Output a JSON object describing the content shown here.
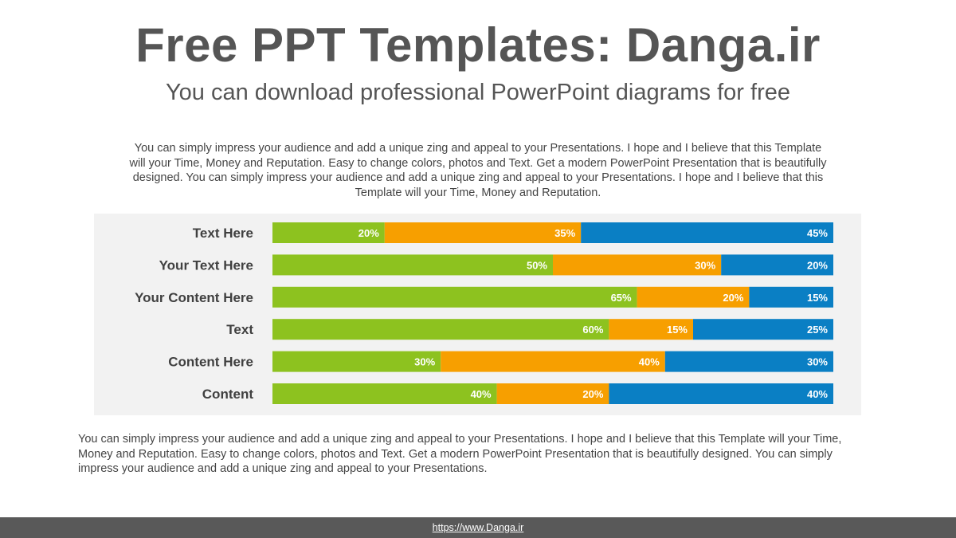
{
  "header": {
    "title": "Free PPT Templates: Danga.ir",
    "subtitle": "You can download professional PowerPoint diagrams for free"
  },
  "intro_text": "You can simply impress your audience and add a unique zing and appeal to your Presentations. I hope and I believe that this Template will your Time, Money and Reputation. Easy to change colors, photos and Text. Get a modern PowerPoint Presentation that is beautifully designed. You can simply impress your audience and add a unique zing and appeal to your Presentations. I hope and I believe that this Template will your Time, Money and Reputation.",
  "chart_data": {
    "type": "bar",
    "orientation": "horizontal",
    "stacked": "100%",
    "categories": [
      "Text Here",
      "Your Text Here",
      "Your Content  Here",
      "Text",
      "Content Here",
      "Content"
    ],
    "series": [
      {
        "values": [
          20,
          50,
          65,
          60,
          30,
          40
        ],
        "color": "#8dc21f"
      },
      {
        "values": [
          35,
          30,
          20,
          15,
          40,
          20
        ],
        "color": "#f79f00"
      },
      {
        "values": [
          45,
          20,
          15,
          25,
          30,
          40
        ],
        "color": "#0a7fc4"
      }
    ],
    "value_format": "{v}%",
    "background": "#f2f2f2",
    "grid": false,
    "legend": "none"
  },
  "footer_text": "You can simply impress your audience and add a unique zing and appeal to your Presentations. I hope and I believe that this Template will your Time, Money and Reputation. Easy to change colors, photos and Text. Get a modern PowerPoint Presentation that is beautifully designed. You can simply impress your audience and add a unique zing and appeal to your Presentations.",
  "footer_link": "https://www.Danga.ir"
}
